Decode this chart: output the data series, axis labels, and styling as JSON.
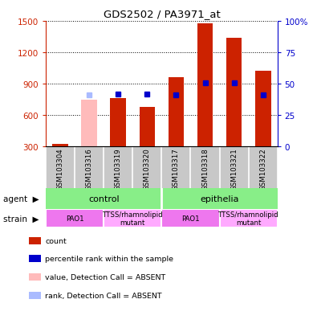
{
  "title": "GDS2502 / PA3971_at",
  "samples": [
    "GSM103304",
    "GSM103316",
    "GSM103319",
    "GSM103320",
    "GSM103317",
    "GSM103318",
    "GSM103321",
    "GSM103322"
  ],
  "count_values": [
    320,
    null,
    760,
    680,
    960,
    1480,
    1340,
    1020
  ],
  "count_absent_values": [
    null,
    745,
    null,
    null,
    null,
    null,
    null,
    null
  ],
  "percentile_rank": [
    null,
    null,
    800,
    800,
    790,
    910,
    910,
    790
  ],
  "percentile_rank_absent": [
    null,
    795,
    null,
    null,
    null,
    null,
    null,
    null
  ],
  "ylim_left": [
    300,
    1500
  ],
  "ylim_right": [
    0,
    100
  ],
  "yticks_left": [
    300,
    600,
    900,
    1200,
    1500
  ],
  "yticks_right": [
    0,
    25,
    50,
    75,
    100
  ],
  "count_color": "#cc2200",
  "count_absent_color": "#ffbbbb",
  "rank_color": "#0000cc",
  "rank_absent_color": "#aabbff",
  "agent_labels": [
    [
      "control",
      0,
      3
    ],
    [
      "epithelia",
      4,
      7
    ]
  ],
  "strain_labels": [
    [
      "PAO1",
      0,
      1
    ],
    [
      "TTSS/rhamnolipid\nmutant",
      2,
      3
    ],
    [
      "PAO1",
      4,
      5
    ],
    [
      "TTSS/rhamnolipid\nmutant",
      6,
      7
    ]
  ],
  "agent_color": "#88ee88",
  "strain_pao1_color": "#ee77ee",
  "strain_mutant_color": "#ffaaff",
  "left_axis_color": "#cc2200",
  "right_axis_color": "#0000cc",
  "legend_items": [
    [
      "#cc2200",
      "count"
    ],
    [
      "#0000cc",
      "percentile rank within the sample"
    ],
    [
      "#ffbbbb",
      "value, Detection Call = ABSENT"
    ],
    [
      "#aabbff",
      "rank, Detection Call = ABSENT"
    ]
  ]
}
